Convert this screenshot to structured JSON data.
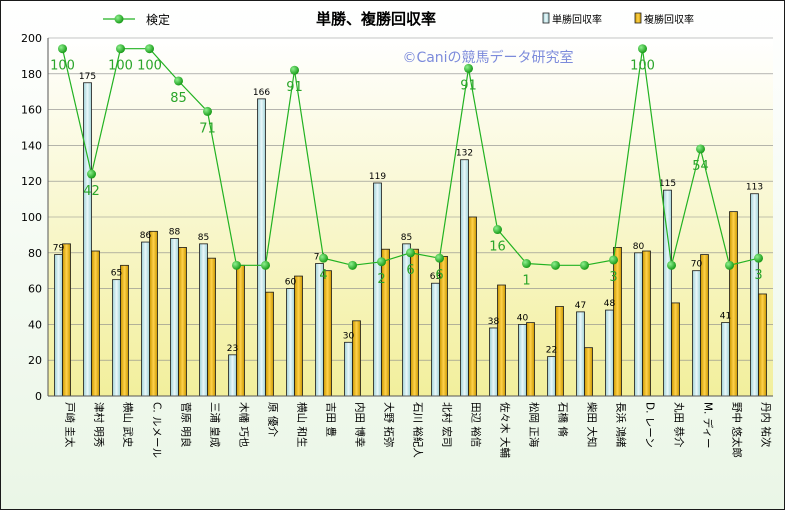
{
  "chart_data": {
    "type": "bar",
    "title": "単勝、複勝回収率",
    "watermark": "©Caniの競馬データ研究室",
    "ylim": [
      0,
      200
    ],
    "y_ticks": [
      0,
      20,
      40,
      60,
      80,
      100,
      120,
      140,
      160,
      180,
      200
    ],
    "grid": true,
    "legend_position": "top",
    "categories": [
      "戸崎 圭太",
      "津村 明秀",
      "横山 武史",
      "C. ルメール",
      "菅原 明良",
      "三浦 皇成",
      "木幡 巧也",
      "原 優介",
      "横山 和生",
      "吉田 豊",
      "内田 博幸",
      "大野 拓弥",
      "石川 裕紀人",
      "北村 宏司",
      "田辺 裕信",
      "佐々木 大輔",
      "松岡 正海",
      "石橋 脩",
      "柴田 大知",
      "長浜 鴻緒",
      "D. レーン",
      "丸田 恭介",
      "M. ディー",
      "野中 悠太郎",
      "丹内 祐次"
    ],
    "series": [
      {
        "name": "単勝回収率",
        "kind": "bar",
        "color": "#cde9ec",
        "values": [
          79,
          175,
          65,
          86,
          88,
          85,
          23,
          166,
          60,
          74,
          30,
          119,
          85,
          63,
          132,
          38,
          40,
          22,
          47,
          48,
          80,
          115,
          70,
          41,
          113
        ]
      },
      {
        "name": "複勝回収率",
        "kind": "bar",
        "color": "#e8b400",
        "values": [
          85,
          81,
          73,
          92,
          83,
          77,
          73,
          58,
          67,
          70,
          42,
          82,
          82,
          78,
          100,
          62,
          41,
          50,
          27,
          83,
          81,
          52,
          79,
          103,
          57
        ]
      },
      {
        "name": "検定",
        "kind": "line",
        "color": "#22b222",
        "values": [
          194,
          124,
          194,
          194,
          176,
          159,
          73,
          73,
          182,
          77,
          73,
          75,
          80,
          77,
          183,
          93,
          74,
          73,
          73,
          76,
          194,
          73,
          138,
          73,
          77
        ],
        "labels": [
          "100",
          "42",
          "100",
          "100",
          "85",
          "71",
          "",
          "",
          "91",
          "4",
          "",
          "2",
          "6",
          "6",
          "91",
          "16",
          "1",
          "",
          "",
          "3",
          "100",
          "",
          "54",
          "",
          "3"
        ]
      }
    ],
    "legend": [
      "検定",
      "単勝回収率",
      "複勝回収率"
    ]
  }
}
